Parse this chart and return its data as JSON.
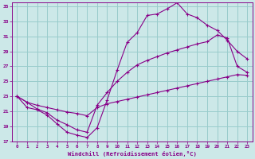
{
  "xlabel": "Windchill (Refroidissement éolien,°C)",
  "bg_color": "#cce8e8",
  "line_color": "#880088",
  "grid_color": "#99cccc",
  "xlim": [
    -0.5,
    23.5
  ],
  "ylim": [
    17,
    35.5
  ],
  "xticks": [
    0,
    1,
    2,
    3,
    4,
    5,
    6,
    7,
    8,
    9,
    10,
    11,
    12,
    13,
    14,
    15,
    16,
    17,
    18,
    19,
    20,
    21,
    22,
    23
  ],
  "yticks": [
    17,
    19,
    21,
    23,
    25,
    27,
    29,
    31,
    33,
    35
  ],
  "line1_x": [
    0,
    1,
    2,
    3,
    4,
    5,
    6,
    7,
    8,
    9,
    10,
    11,
    12,
    13,
    14,
    15,
    16,
    17,
    18,
    19,
    20,
    21,
    22,
    23
  ],
  "line1_y": [
    23.0,
    22.2,
    21.8,
    21.5,
    21.2,
    20.9,
    20.7,
    20.4,
    21.5,
    22.0,
    22.3,
    22.6,
    22.9,
    23.2,
    23.5,
    23.8,
    24.1,
    24.4,
    24.7,
    25.0,
    25.3,
    25.6,
    25.9,
    25.8
  ],
  "line2_x": [
    0,
    1,
    2,
    3,
    4,
    5,
    6,
    7,
    8,
    9,
    10,
    11,
    12,
    13,
    14,
    15,
    16,
    17,
    18,
    19,
    20,
    21,
    22,
    23
  ],
  "line2_y": [
    23.0,
    22.2,
    21.3,
    20.8,
    19.8,
    19.2,
    18.5,
    18.2,
    21.8,
    23.5,
    25.0,
    26.2,
    27.2,
    27.8,
    28.3,
    28.8,
    29.2,
    29.6,
    30.0,
    30.3,
    31.2,
    30.8,
    27.0,
    26.2
  ],
  "line3_x": [
    0,
    1,
    2,
    3,
    4,
    5,
    6,
    7,
    8,
    9,
    10,
    11,
    12,
    13,
    14,
    15,
    16,
    17,
    18,
    19,
    20,
    21,
    22,
    23
  ],
  "line3_y": [
    23.0,
    21.5,
    21.2,
    20.5,
    19.3,
    18.2,
    17.8,
    17.5,
    18.8,
    22.5,
    26.5,
    30.2,
    31.5,
    33.8,
    34.0,
    34.7,
    35.5,
    34.0,
    33.5,
    32.5,
    31.8,
    30.5,
    29.0,
    28.0
  ]
}
